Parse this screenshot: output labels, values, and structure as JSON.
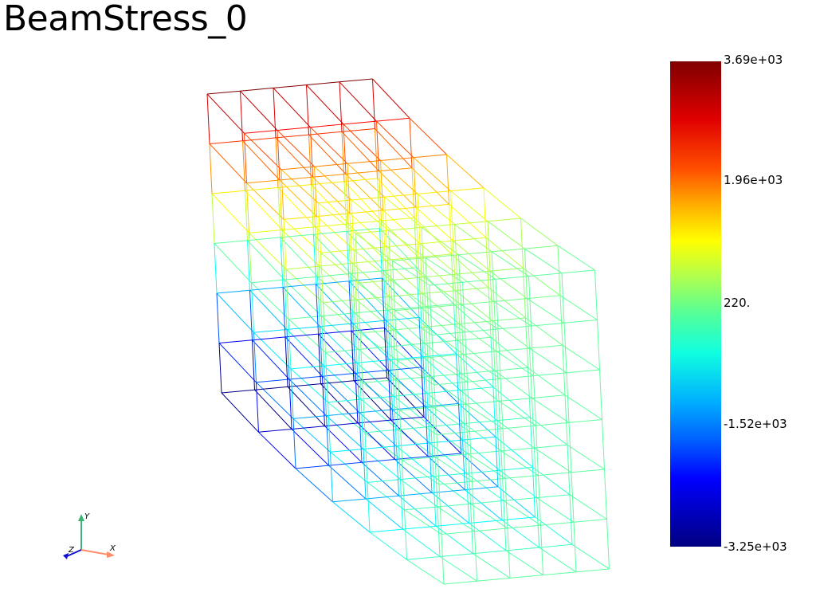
{
  "title": "BeamStress_0",
  "colorbar": {
    "ticks": [
      "3.69e+03",
      "1.96e+03",
      "220.",
      "-1.52e+03",
      "-3.25e+03"
    ],
    "colormap": "jet",
    "range_max": 3690,
    "range_min": -3250
  },
  "axes_widget": {
    "x_label": "X",
    "y_label": "Y",
    "z_label": "Z",
    "x_color": "#ff8c69",
    "y_color": "#3cb371",
    "z_color": "#1010d0"
  },
  "mesh": {
    "type": "wireframe",
    "elements_x": 5,
    "elements_y": 6,
    "elements_z": 6
  }
}
